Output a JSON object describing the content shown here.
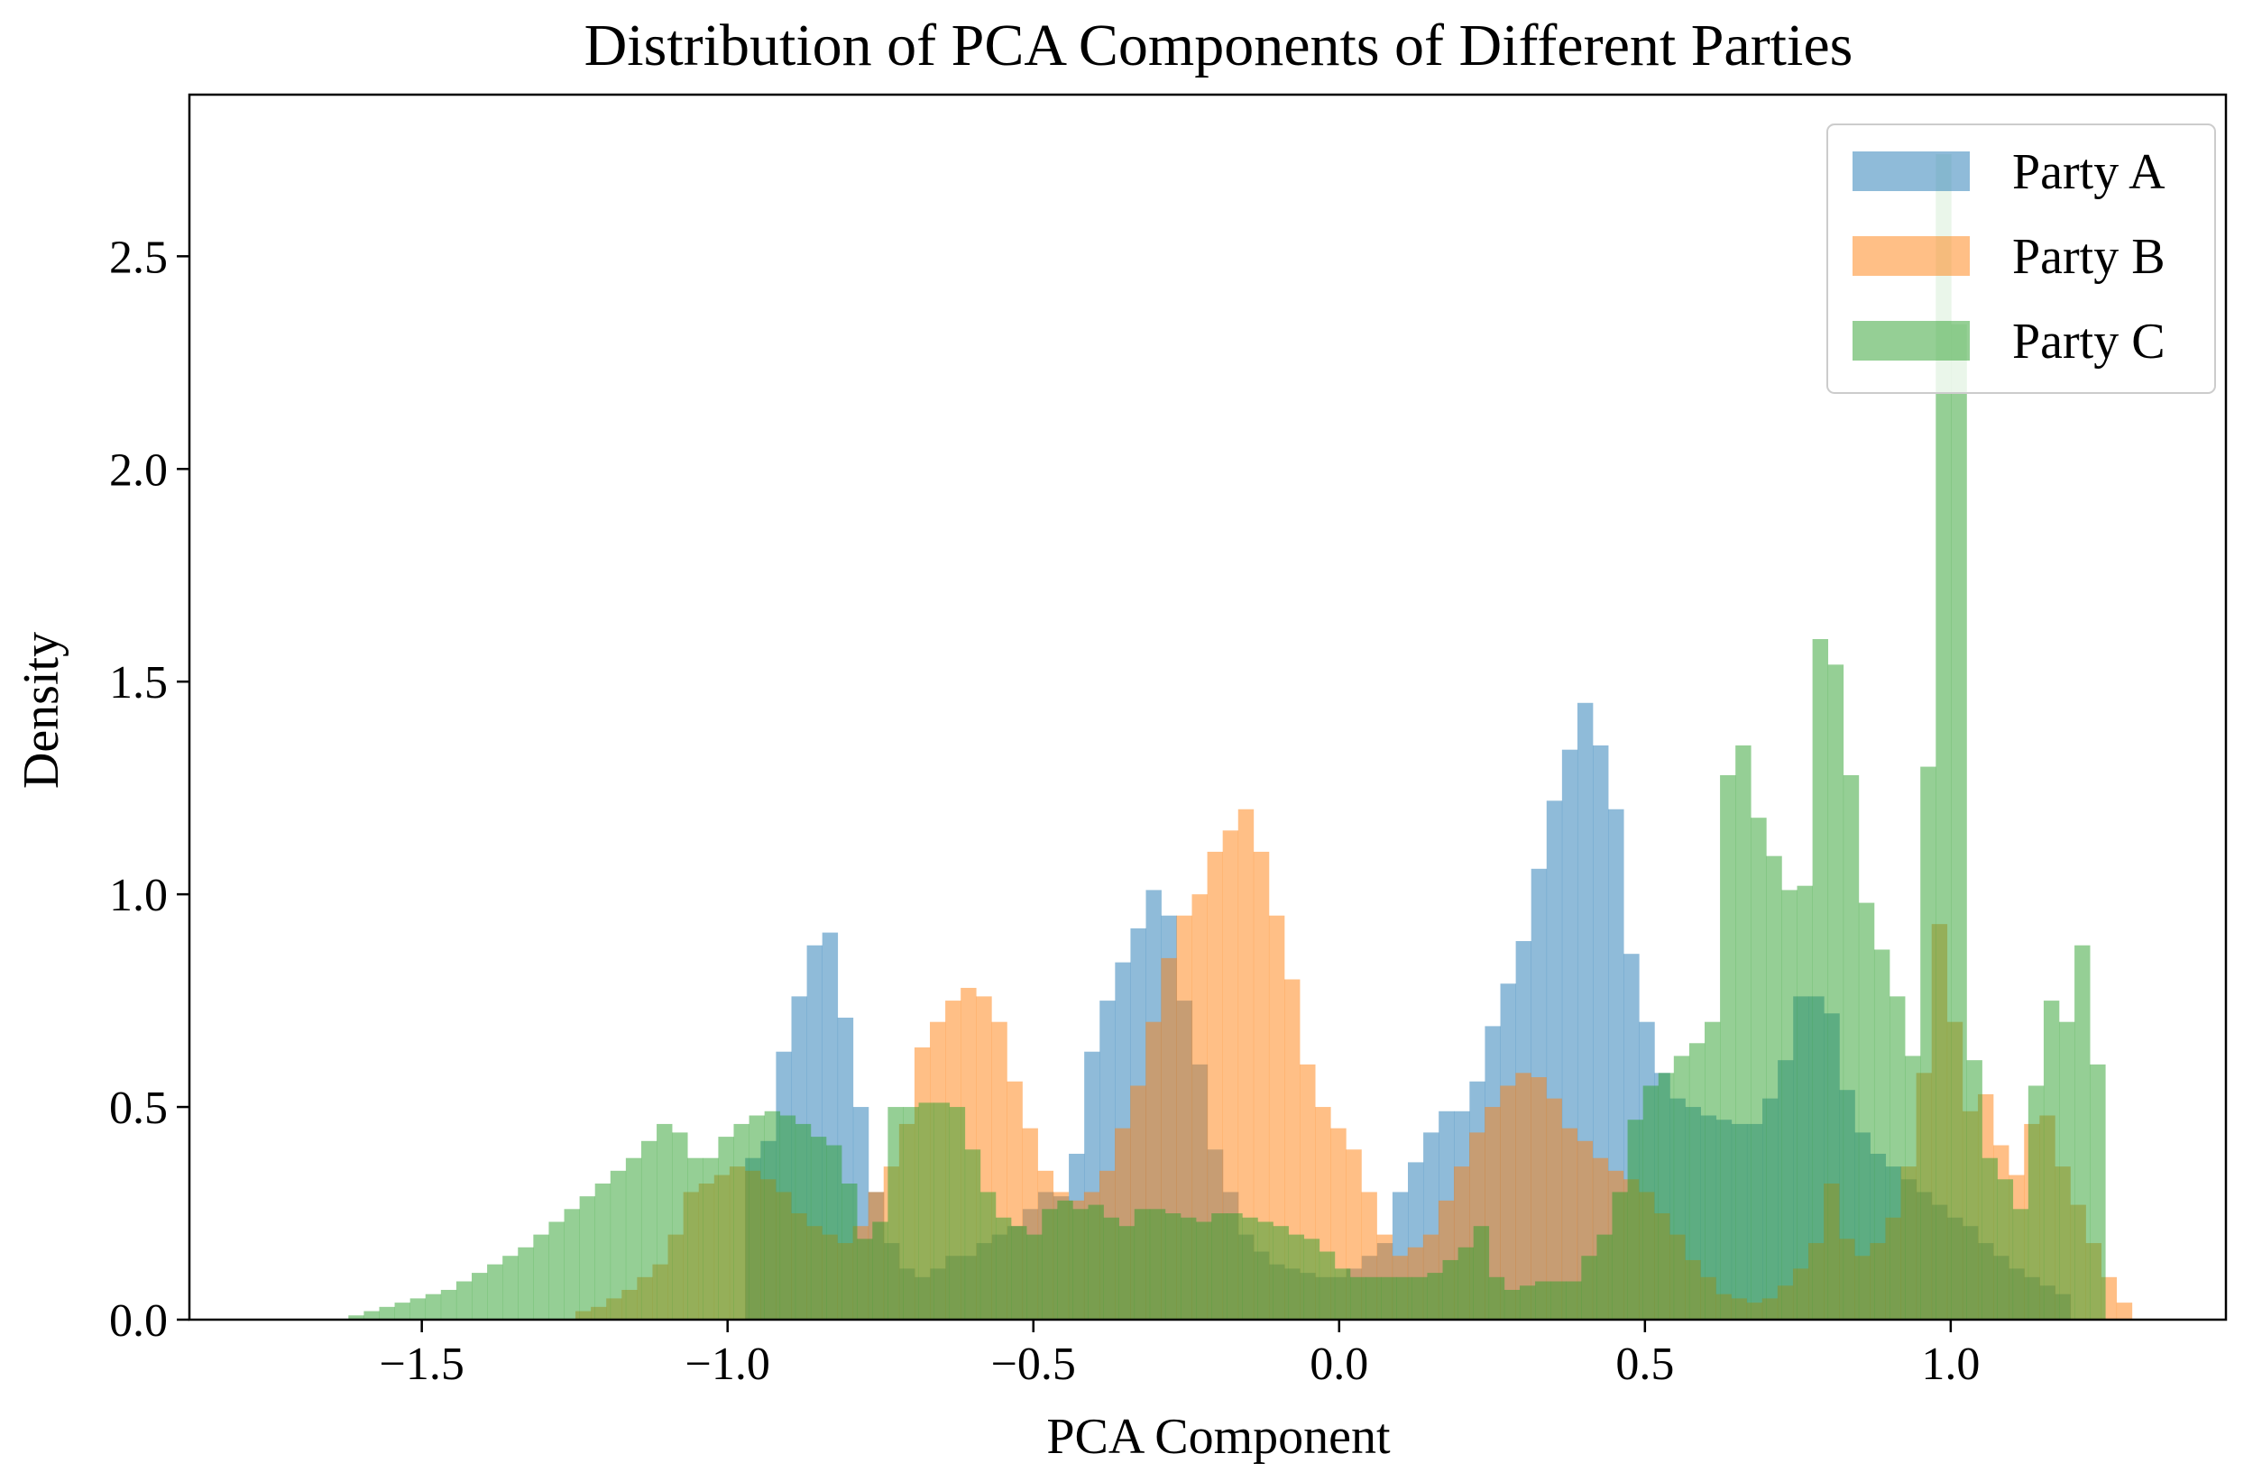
{
  "chart_data": {
    "type": "histogram",
    "title": "Distribution of PCA Components of Different Parties",
    "xlabel": "PCA Component",
    "ylabel": "Density",
    "xlim": [
      -1.88,
      1.45
    ],
    "ylim": [
      0,
      2.88
    ],
    "xticks": [
      -1.5,
      -1.0,
      -0.5,
      0.0,
      0.5,
      1.0
    ],
    "xtick_labels": [
      "−1.5",
      "−1.0",
      "−0.5",
      "0.0",
      "0.5",
      "1.0"
    ],
    "yticks": [
      0,
      0.5,
      1.0,
      1.5,
      2.0,
      2.5
    ],
    "ytick_labels": [
      "0.0",
      "0.5",
      "1.0",
      "1.5",
      "2.0",
      "2.5"
    ],
    "grid": false,
    "legend_position": "top-right",
    "bin_width": 0.0252,
    "series": [
      {
        "name": "Party A",
        "color": "#1f77b4",
        "alpha": 0.5,
        "x_start": -1.45,
        "values": [
          0,
          0,
          0,
          0,
          0,
          0,
          0,
          0,
          0,
          0,
          0,
          0,
          0,
          0,
          0,
          0,
          0,
          0,
          0,
          0.38,
          0.42,
          0.63,
          0.76,
          0.88,
          0.91,
          0.71,
          0.5,
          0.3,
          0.18,
          0.12,
          0.1,
          0.12,
          0.15,
          0.15,
          0.18,
          0.2,
          0.22,
          0.26,
          0.3,
          0.29,
          0.39,
          0.63,
          0.75,
          0.84,
          0.92,
          1.01,
          0.95,
          0.75,
          0.6,
          0.4,
          0.3,
          0.2,
          0.16,
          0.13,
          0.12,
          0.11,
          0.1,
          0.1,
          0.12,
          0.15,
          0.18,
          0.3,
          0.37,
          0.44,
          0.49,
          0.49,
          0.56,
          0.69,
          0.79,
          0.89,
          1.06,
          1.22,
          1.34,
          1.45,
          1.35,
          1.2,
          0.86,
          0.7,
          0.58,
          0.52,
          0.5,
          0.48,
          0.47,
          0.46,
          0.46,
          0.52,
          0.61,
          0.76,
          0.76,
          0.72,
          0.54,
          0.44,
          0.39,
          0.36,
          0.33,
          0.3,
          0.27,
          0.24,
          0.22,
          0.18,
          0.15,
          0.12,
          0.1,
          0.08,
          0.06
        ]
      },
      {
        "name": "Party B",
        "color": "#ff7f0e",
        "alpha": 0.5,
        "x_start": -1.4,
        "values": [
          0,
          0,
          0,
          0,
          0,
          0,
          0.02,
          0.03,
          0.05,
          0.07,
          0.1,
          0.13,
          0.2,
          0.3,
          0.32,
          0.34,
          0.36,
          0.35,
          0.33,
          0.3,
          0.25,
          0.22,
          0.2,
          0.18,
          0.22,
          0.3,
          0.36,
          0.46,
          0.64,
          0.7,
          0.75,
          0.78,
          0.76,
          0.7,
          0.56,
          0.45,
          0.35,
          0.3,
          0.28,
          0.3,
          0.35,
          0.45,
          0.55,
          0.7,
          0.85,
          0.95,
          1.0,
          1.1,
          1.15,
          1.2,
          1.1,
          0.95,
          0.8,
          0.6,
          0.5,
          0.45,
          0.4,
          0.3,
          0.2,
          0.15,
          0.17,
          0.2,
          0.28,
          0.36,
          0.44,
          0.5,
          0.55,
          0.58,
          0.57,
          0.52,
          0.45,
          0.42,
          0.38,
          0.35,
          0.33,
          0.3,
          0.25,
          0.2,
          0.14,
          0.1,
          0.06,
          0.05,
          0.04,
          0.05,
          0.08,
          0.12,
          0.18,
          0.32,
          0.19,
          0.15,
          0.18,
          0.24,
          0.36,
          0.58,
          0.93,
          0.7,
          0.49,
          0.53,
          0.41,
          0.34,
          0.46,
          0.48,
          0.36,
          0.27,
          0.18,
          0.1,
          0.04
        ]
      },
      {
        "name": "Party C",
        "color": "#2ca02c",
        "alpha": 0.5,
        "x_start": -1.62,
        "values": [
          0.01,
          0.02,
          0.03,
          0.04,
          0.05,
          0.06,
          0.07,
          0.09,
          0.11,
          0.13,
          0.15,
          0.17,
          0.2,
          0.23,
          0.26,
          0.29,
          0.32,
          0.35,
          0.38,
          0.42,
          0.46,
          0.44,
          0.38,
          0.38,
          0.43,
          0.46,
          0.48,
          0.49,
          0.48,
          0.46,
          0.43,
          0.41,
          0.32,
          0.19,
          0.23,
          0.5,
          0.5,
          0.51,
          0.51,
          0.5,
          0.4,
          0.3,
          0.24,
          0.22,
          0.2,
          0.26,
          0.28,
          0.26,
          0.27,
          0.24,
          0.22,
          0.26,
          0.26,
          0.25,
          0.24,
          0.23,
          0.25,
          0.25,
          0.24,
          0.23,
          0.22,
          0.2,
          0.19,
          0.16,
          0.12,
          0.1,
          0.1,
          0.1,
          0.1,
          0.1,
          0.11,
          0.14,
          0.17,
          0.22,
          0.1,
          0.07,
          0.08,
          0.09,
          0.09,
          0.09,
          0.15,
          0.2,
          0.3,
          0.47,
          0.55,
          0.58,
          0.62,
          0.65,
          0.7,
          1.28,
          1.35,
          1.18,
          1.09,
          1.01,
          1.02,
          1.6,
          1.54,
          1.28,
          0.98,
          0.87,
          0.76,
          0.62,
          1.3,
          2.74,
          2.34,
          0.61,
          0.38,
          0.33,
          0.26,
          0.55,
          0.75,
          0.7,
          0.88,
          0.6
        ]
      }
    ]
  }
}
